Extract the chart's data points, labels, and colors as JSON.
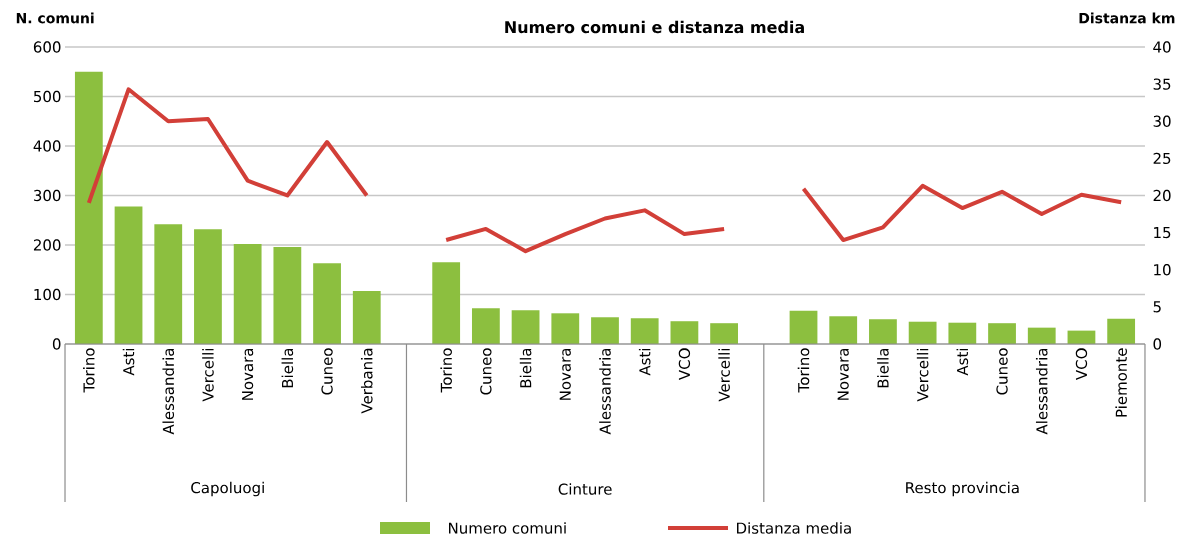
{
  "chart_data": {
    "type": "bar",
    "title": "Numero comuni e distanza media",
    "ylabel": "N. comuni",
    "y2label": "Distanza km",
    "categories": [
      "Torino",
      "Asti",
      "Alessandria",
      "Vercelli",
      "Novara",
      "Biella",
      "Cuneo",
      "Verbania",
      null,
      "Torino",
      "Cuneo",
      "Biella",
      "Novara",
      "Alessandria",
      "Asti",
      "VCO",
      "Vercelli",
      null,
      "Torino",
      "Novara",
      "Biella",
      "Vercelli",
      "Asti",
      "Cuneo",
      "Alessandria",
      "VCO",
      "Piemonte"
    ],
    "series": [
      {
        "name": "Numero comuni",
        "color": "#8cbf3f",
        "values": [
          550,
          278,
          242,
          232,
          202,
          196,
          163,
          107,
          null,
          165,
          72,
          68,
          62,
          54,
          52,
          46,
          42,
          null,
          67,
          56,
          50,
          45,
          43,
          42,
          33,
          27,
          51
        ]
      },
      {
        "name": "Distanza media",
        "type": "line",
        "axis": "y2",
        "color": "#d23f38",
        "values": [
          19,
          34.3,
          30,
          30.3,
          22,
          20,
          27.2,
          20,
          null,
          14,
          15.5,
          12.5,
          14.8,
          16.9,
          18,
          14.8,
          15.5,
          null,
          20.9,
          14,
          15.7,
          21.3,
          18.3,
          20.5,
          17.5,
          20.1,
          19.1
        ]
      }
    ],
    "ylim": [
      0,
      600
    ],
    "yticks": [
      0,
      100,
      200,
      300,
      400,
      500,
      600
    ],
    "y2lim": [
      0,
      40
    ],
    "y2ticks": [
      0,
      5,
      10,
      15,
      20,
      25,
      30,
      35,
      40
    ],
    "annotations": [
      "Capoluogi",
      "Cinture",
      "Resto provincia"
    ],
    "grid": "y",
    "legend": "bottom"
  }
}
